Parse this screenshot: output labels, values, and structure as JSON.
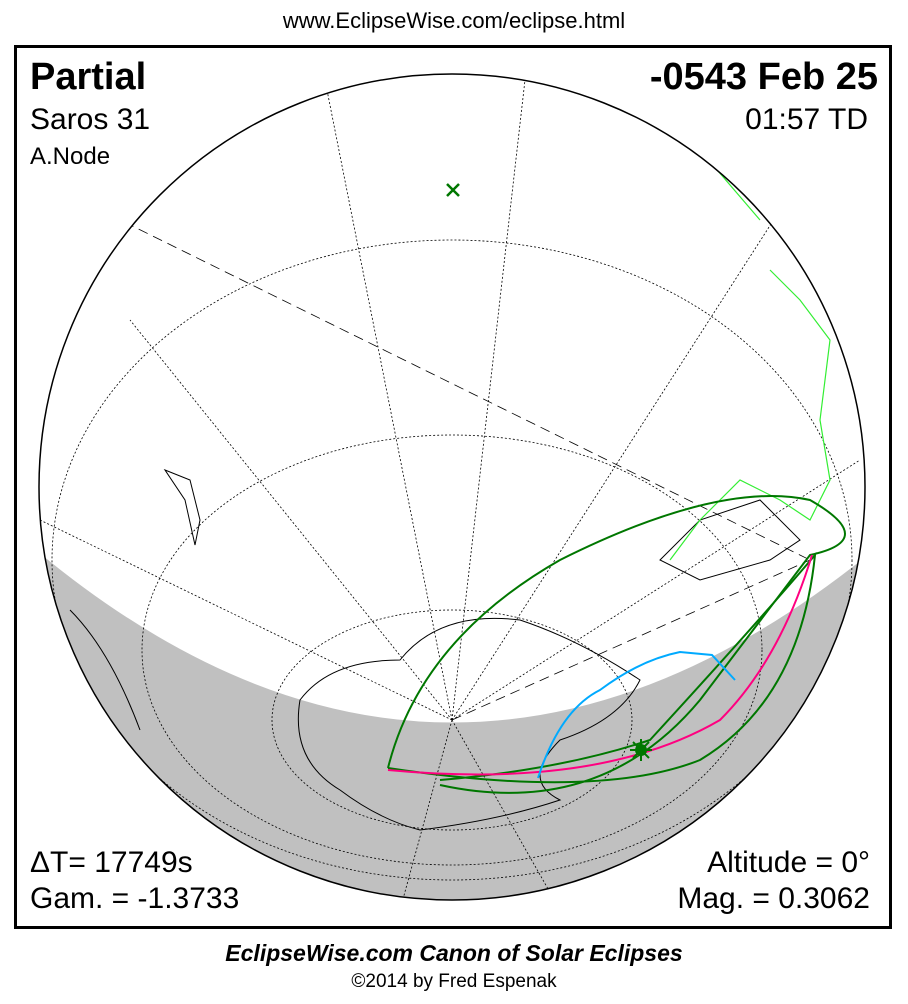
{
  "header_url": "www.EclipseWise.com/eclipse.html",
  "eclipse": {
    "type": "Partial",
    "date": "-0543 Feb 25",
    "saros": "Saros  31",
    "time": "01:57 TD",
    "node": "A.Node",
    "delta_t": "ΔT=  17749s",
    "gamma": "Gam. = -1.3733",
    "altitude": "Altitude =  0°",
    "magnitude": "Mag. = 0.3062"
  },
  "footer": {
    "title": "EclipseWise.com Canon of Solar Eclipses",
    "copyright": "©2014 by Fred Espenak"
  },
  "colors": {
    "night": "#c0c0c0",
    "penumbra_limits": "#007700",
    "max_eclipse_curve": "#ff0080",
    "rise_set_curve": "#00aaff",
    "borders": "#33ee33"
  }
}
